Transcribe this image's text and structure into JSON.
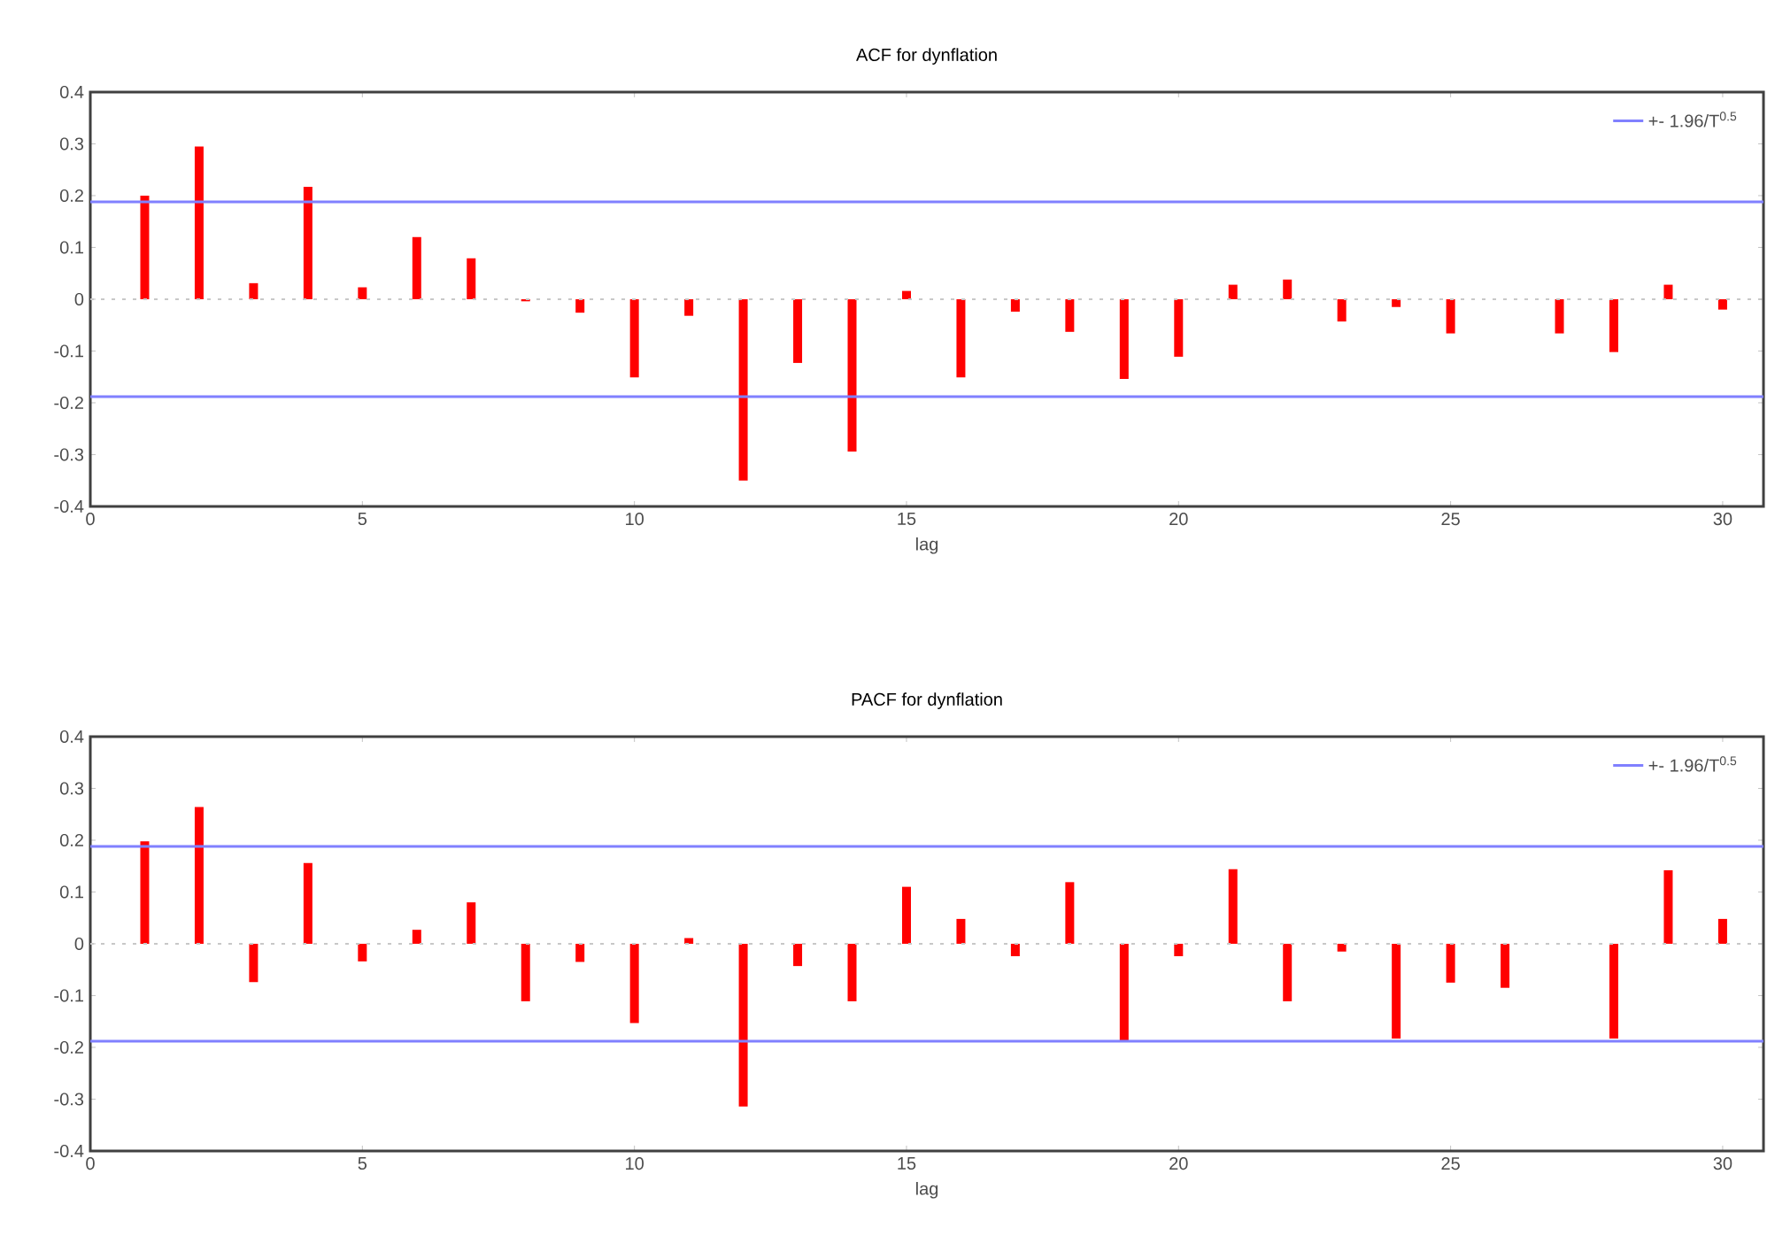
{
  "chart_data": [
    {
      "type": "bar",
      "title": "ACF for dynflation",
      "xlabel": "lag",
      "x": [
        1,
        2,
        3,
        4,
        5,
        6,
        7,
        8,
        9,
        10,
        11,
        12,
        13,
        14,
        15,
        16,
        17,
        18,
        19,
        20,
        21,
        22,
        23,
        24,
        25,
        26,
        27,
        28,
        29,
        30
      ],
      "series": [
        {
          "color": "#ff0000",
          "values": [
            0.2,
            0.295,
            0.031,
            0.217,
            0.023,
            0.12,
            0.079,
            -0.004,
            -0.026,
            -0.151,
            -0.032,
            -0.35,
            -0.123,
            -0.294,
            0.016,
            -0.151,
            -0.024,
            -0.063,
            -0.154,
            -0.111,
            0.028,
            0.038,
            -0.043,
            -0.015,
            -0.066,
            null,
            -0.066,
            -0.102,
            0.028,
            -0.02
          ]
        }
      ],
      "xlim": [
        0,
        30.75
      ],
      "xticks": [
        0,
        5,
        10,
        15,
        20,
        25,
        30
      ],
      "ylim": [
        -0.4,
        0.4
      ],
      "yticks": [
        -0.4,
        -0.3,
        -0.2,
        -0.1,
        0,
        0.1,
        0.2,
        0.3,
        0.4
      ],
      "ref_lines": [
        {
          "axis": "y",
          "value": 0.188,
          "label": "+- 1.96/T$^{0.5}$",
          "color": "#8080ff"
        },
        {
          "axis": "y",
          "value": -0.188,
          "color": "#8080ff"
        },
        {
          "axis": "y",
          "value": 0,
          "color": "#c8c8c8",
          "line_style": "dotted"
        }
      ],
      "legend": "top right",
      "grid": false
    },
    {
      "type": "bar",
      "title": "PACF for dynflation",
      "xlabel": "lag",
      "x": [
        1,
        2,
        3,
        4,
        5,
        6,
        7,
        8,
        9,
        10,
        11,
        12,
        13,
        14,
        15,
        16,
        17,
        18,
        19,
        20,
        21,
        22,
        23,
        24,
        25,
        26,
        27,
        28,
        29,
        30
      ],
      "series": [
        {
          "color": "#ff0000",
          "values": [
            0.198,
            0.264,
            -0.074,
            0.156,
            -0.034,
            0.027,
            0.08,
            -0.111,
            -0.035,
            -0.153,
            0.011,
            -0.314,
            -0.043,
            -0.111,
            0.11,
            0.048,
            -0.024,
            0.119,
            -0.19,
            -0.024,
            0.144,
            -0.111,
            -0.015,
            -0.183,
            -0.075,
            -0.085,
            null,
            -0.183,
            0.142,
            0.048
          ]
        }
      ],
      "xlim": [
        0,
        30.75
      ],
      "xticks": [
        0,
        5,
        10,
        15,
        20,
        25,
        30
      ],
      "ylim": [
        -0.4,
        0.4
      ],
      "yticks": [
        -0.4,
        -0.3,
        -0.2,
        -0.1,
        0,
        0.1,
        0.2,
        0.3,
        0.4
      ],
      "ref_lines": [
        {
          "axis": "y",
          "value": 0.188,
          "label": "+- 1.96/T$^{0.5}$",
          "color": "#8080ff"
        },
        {
          "axis": "y",
          "value": -0.188,
          "color": "#8080ff"
        },
        {
          "axis": "y",
          "value": 0,
          "color": "#c8c8c8",
          "line_style": "dotted"
        }
      ],
      "legend": "top right",
      "grid": false
    }
  ]
}
